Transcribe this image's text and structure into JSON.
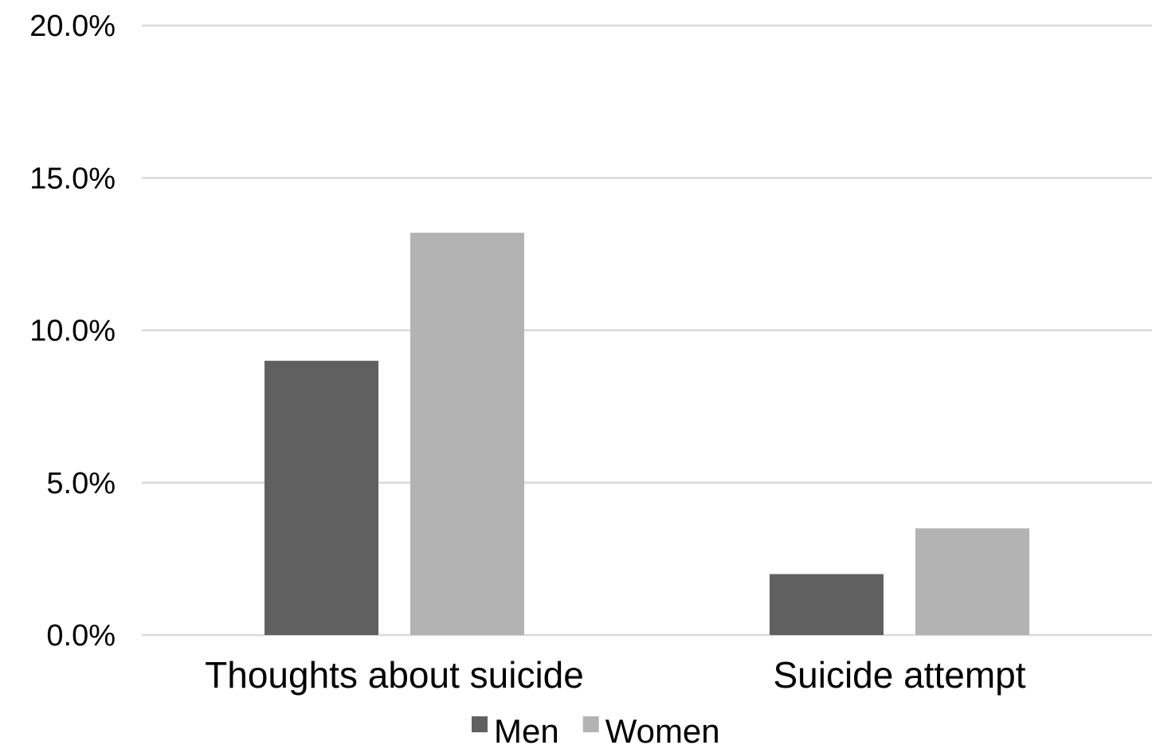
{
  "chart_data": {
    "type": "bar",
    "title": "",
    "xlabel": "",
    "ylabel": "",
    "categories": [
      "Thoughts about suicide",
      "Suicide attempt"
    ],
    "series": [
      {
        "name": "Men",
        "values": [
          9.0,
          2.0
        ],
        "color": "#606060"
      },
      {
        "name": "Women",
        "values": [
          13.2,
          3.5
        ],
        "color": "#b3b3b3"
      }
    ],
    "ylim": [
      0,
      20
    ],
    "yticks": [
      0,
      5,
      10,
      15,
      20
    ],
    "ytick_labels": [
      "0.0%",
      "5.0%",
      "10.0%",
      "15.0%",
      "20.0%"
    ],
    "grid": true,
    "legend_position": "bottom"
  }
}
